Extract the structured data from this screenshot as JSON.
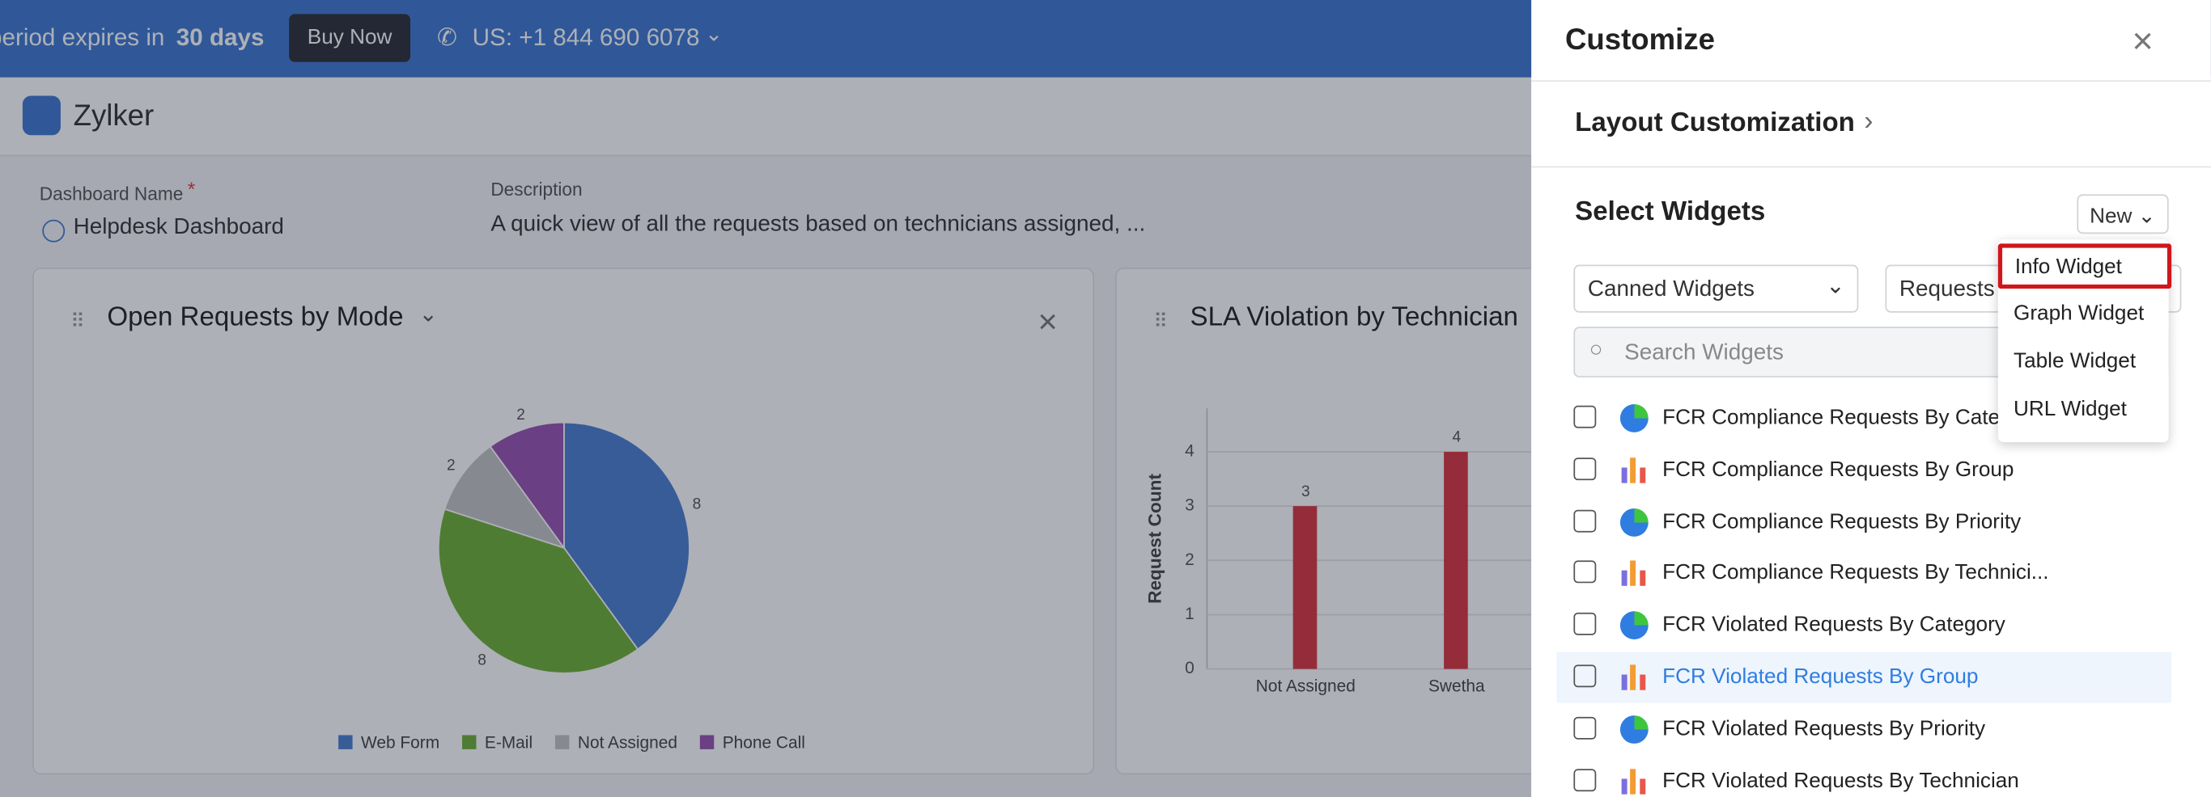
{
  "banner": {
    "trial_text": "period expires in",
    "days": "30 days",
    "buy_button": "Buy Now",
    "phone": "US: +1 844 690 6078"
  },
  "app": {
    "name": "Zylker"
  },
  "dashboard": {
    "name_label": "Dashboard Name",
    "required_mark": "*",
    "name": "Helpdesk Dashboard",
    "description_label": "Description",
    "description": "A quick view of all the requests based on technicians assigned, ..."
  },
  "chart_data": [
    {
      "type": "pie",
      "title": "Open Requests by Mode",
      "categories": [
        "Web Form",
        "E-Mail",
        "Not Assigned",
        "Phone Call"
      ],
      "values": [
        8,
        8,
        2,
        2
      ],
      "colors": [
        "#4a7ed0",
        "#6fb035",
        "#c4c4c4",
        "#9a52b0"
      ],
      "legend": "bottom"
    },
    {
      "type": "bar",
      "title": "SLA Violation by Technician",
      "y_label": "Request Count",
      "categories": [
        "Not Assigned",
        "Swetha"
      ],
      "values": [
        3,
        4
      ],
      "color": "#d9363e",
      "ylim": [
        0,
        4.8
      ],
      "yticks": [
        0,
        1,
        2,
        3,
        4
      ],
      "grid": true
    }
  ],
  "customize": {
    "title": "Customize",
    "layout_link": "Layout Customization",
    "select_title": "Select Widgets",
    "new_button": "New",
    "filter": "Canned Widgets",
    "module": "Requests",
    "search_placeholder": "Search Widgets",
    "new_menu": [
      "Info Widget",
      "Graph Widget",
      "Table Widget",
      "URL Widget"
    ],
    "widgets": [
      "FCR Compliance Requests By Category",
      "FCR Compliance Requests By Group",
      "FCR Compliance Requests By Priority",
      "FCR Compliance Requests By Technici...",
      "FCR Violated Requests By Category",
      "FCR Violated Requests By Group",
      "FCR Violated Requests By Priority",
      "FCR Violated Requests By Technician"
    ]
  }
}
